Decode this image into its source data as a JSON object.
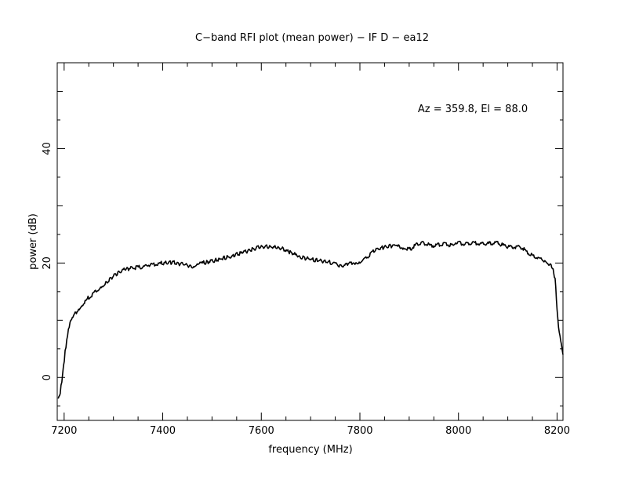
{
  "chart_data": {
    "type": "line",
    "title": "C−band RFI plot (mean power) − IF D − ea12",
    "annotation": "Az = 359.8, El = 88.0",
    "xlabel": "frequency (MHz)",
    "ylabel": "power (dB)",
    "xlim": [
      7186,
      8212
    ],
    "ylim": [
      -7.5,
      55
    ],
    "x_ticks": [
      7200,
      7400,
      7600,
      7800,
      8000,
      8200
    ],
    "y_ticks": [
      0,
      20,
      40
    ],
    "x_tick_labels": [
      "7200",
      "7400",
      "7600",
      "7800",
      "8000",
      "8200"
    ],
    "y_tick_labels": [
      "0",
      "20",
      "40"
    ],
    "grid": false,
    "line_color": "#000000",
    "series": [
      {
        "x": [
          7188,
          7192,
          7197,
          7202,
          7207,
          7212,
          7218,
          7225,
          7235,
          7250,
          7265,
          7280,
          7300,
          7320,
          7340,
          7355,
          7370,
          7385,
          7400,
          7420,
          7440,
          7460,
          7470,
          7480,
          7500,
          7520,
          7540,
          7560,
          7580,
          7600,
          7620,
          7640,
          7660,
          7680,
          7700,
          7720,
          7740,
          7755,
          7765,
          7775,
          7790,
          7800,
          7815,
          7830,
          7850,
          7870,
          7880,
          7890,
          7900,
          7915,
          7930,
          7945,
          7960,
          7975,
          7990,
          8000,
          8015,
          8030,
          8045,
          8060,
          8075,
          8090,
          8105,
          8120,
          8130,
          8145,
          8160,
          8175,
          8185,
          8192,
          8196,
          8200,
          8203,
          8206,
          8209,
          8212
        ],
        "y": [
          -3.8,
          -2.5,
          0.5,
          4.5,
          7.5,
          9.5,
          10.5,
          11.5,
          12.5,
          14,
          15,
          16,
          17.8,
          18.8,
          19.2,
          19.3,
          19.6,
          19.8,
          20.0,
          20.1,
          19.8,
          19.3,
          19.6,
          20.0,
          20.3,
          20.8,
          21.2,
          21.8,
          22.3,
          22.9,
          22.8,
          22.6,
          21.8,
          21.0,
          20.7,
          20.4,
          20.1,
          19.8,
          19.2,
          19.8,
          20.1,
          20.2,
          21.0,
          22.2,
          22.8,
          23.1,
          22.8,
          22.6,
          22.3,
          23.2,
          23.5,
          23.0,
          23.2,
          23.3,
          23.0,
          23.5,
          23.3,
          23.5,
          23.3,
          23.4,
          23.6,
          23.1,
          22.8,
          22.8,
          22.6,
          21.5,
          21.0,
          20.5,
          19.8,
          18.8,
          17.2,
          12.0,
          9.0,
          7.0,
          5.5,
          4.0
        ]
      }
    ]
  }
}
